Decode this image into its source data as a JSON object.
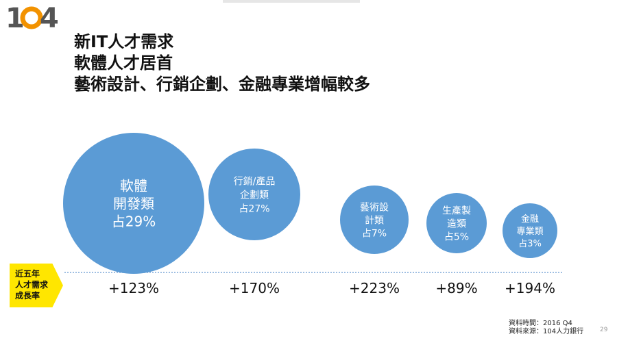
{
  "logo": {
    "text_1": "1",
    "text_0": "0",
    "text_4": "4",
    "colors": {
      "digit": "#555555",
      "accent": "#f29200"
    }
  },
  "titles": [
    "新IT人才需求",
    "軟體人才居首",
    "藝術設計、行銷企劃、金融專業增幅較多"
  ],
  "growth_label": [
    "近五年",
    "人才需求",
    "成長率"
  ],
  "chart_data": {
    "type": "bubble",
    "categories": [
      "軟體開發類",
      "行銷/產品企劃類",
      "藝術設計類",
      "生產製造類",
      "金融專業類"
    ],
    "bubble_labels": [
      [
        "軟體",
        "開發類",
        "占29%"
      ],
      [
        "行銷/產品",
        "企劃類",
        "占27%"
      ],
      [
        "藝術設",
        "計類",
        "占7%"
      ],
      [
        "生產製",
        "造類",
        "占5%"
      ],
      [
        "金融",
        "專業類",
        "占3%"
      ]
    ],
    "share_pct": [
      29,
      27,
      7,
      5,
      3
    ],
    "growth": [
      "+123%",
      "+170%",
      "+223%",
      "+89%",
      "+194%"
    ],
    "growth_pct": [
      123,
      170,
      223,
      89,
      194
    ],
    "colors": {
      "bubble": "#5b9bd5",
      "baseline": "#7fa8d8",
      "label_bg": "#ffe600"
    }
  },
  "source": [
    "資料時間：2016 Q4",
    "資料來源：104人力銀行"
  ],
  "page_number": "29"
}
